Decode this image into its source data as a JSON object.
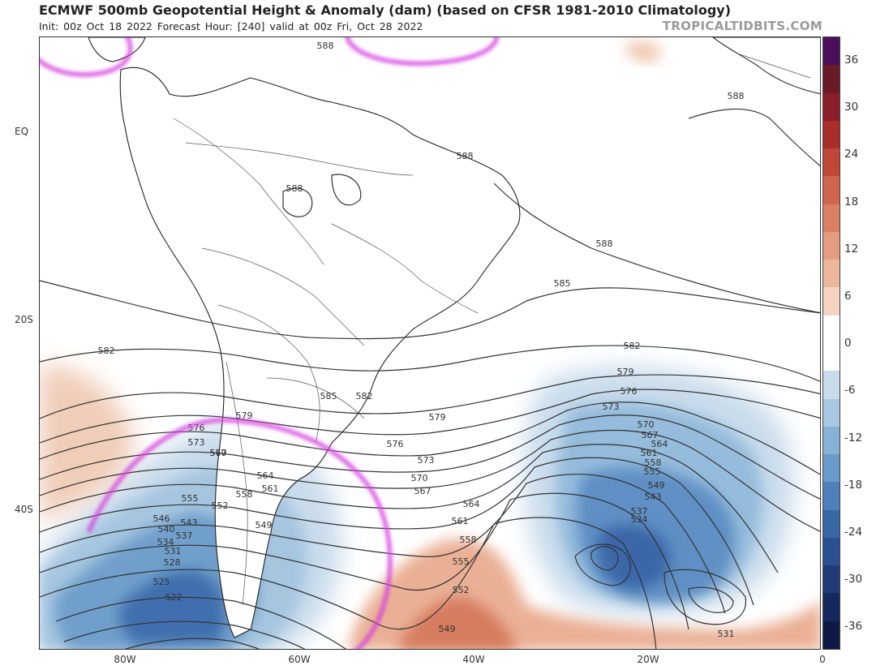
{
  "header": {
    "title": "ECMWF 500mb Geopotential Height & Anomaly (dam) (based on CFSR 1981-2010 Climatology)",
    "subtitle": "Init: 00z Oct 18 2022   Forecast Hour: [240]   valid at 00z Fri, Oct 28 2022",
    "brand": "TROPICALTIDBITS.COM"
  },
  "axes": {
    "lat_labels": [
      "EQ",
      "20S",
      "40S"
    ],
    "lon_labels": [
      "80W",
      "60W",
      "40W",
      "20W",
      "0"
    ]
  },
  "colorbar": {
    "labels": [
      "36",
      "30",
      "24",
      "18",
      "12",
      "6",
      "0",
      "-6",
      "-12",
      "-18",
      "-24",
      "-30",
      "-36"
    ],
    "colors": [
      "#4b0f5b",
      "#6a1a24",
      "#8b1e2a",
      "#a82d2b",
      "#c1473a",
      "#d0654f",
      "#db8064",
      "#e49d80",
      "#ecb79c",
      "#f4d3c0",
      "#ffffff",
      "#ffffff",
      "#c9dcec",
      "#a9c9e2",
      "#87b2d6",
      "#6a9ac9",
      "#4f80bb",
      "#3a66a8",
      "#2b4f91",
      "#203b78",
      "#16295f",
      "#0d1a45"
    ]
  },
  "contours": {
    "labels": [
      "588",
      "588",
      "588",
      "588",
      "588",
      "585",
      "582",
      "582",
      "585",
      "582",
      "579",
      "579",
      "576",
      "576",
      "573",
      "573",
      "570",
      "570",
      "567",
      "567",
      "564",
      "564",
      "561",
      "561",
      "558",
      "558",
      "555",
      "555",
      "552",
      "552",
      "549",
      "549",
      "546",
      "543",
      "540",
      "537",
      "534",
      "531",
      "528",
      "525",
      "522",
      "579",
      "576",
      "573",
      "570",
      "567",
      "564",
      "561",
      "558",
      "555",
      "549",
      "543",
      "537",
      "534",
      "531"
    ]
  }
}
